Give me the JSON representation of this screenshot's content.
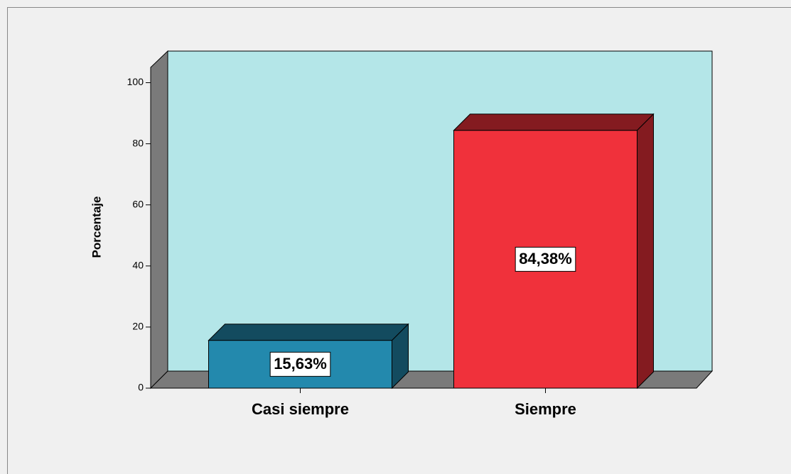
{
  "chart_data": {
    "type": "bar3d",
    "y_label": "Porcentaje",
    "categories": [
      "Casi siempre",
      "Siempre"
    ],
    "values": [
      15.63,
      84.38
    ],
    "value_labels": [
      "15,63%",
      "84,38%"
    ],
    "colors": [
      "#2389ad",
      "#f0313b"
    ],
    "ylim": [
      0,
      105
    ],
    "yticks": [
      0,
      20,
      40,
      60,
      80,
      100
    ]
  }
}
